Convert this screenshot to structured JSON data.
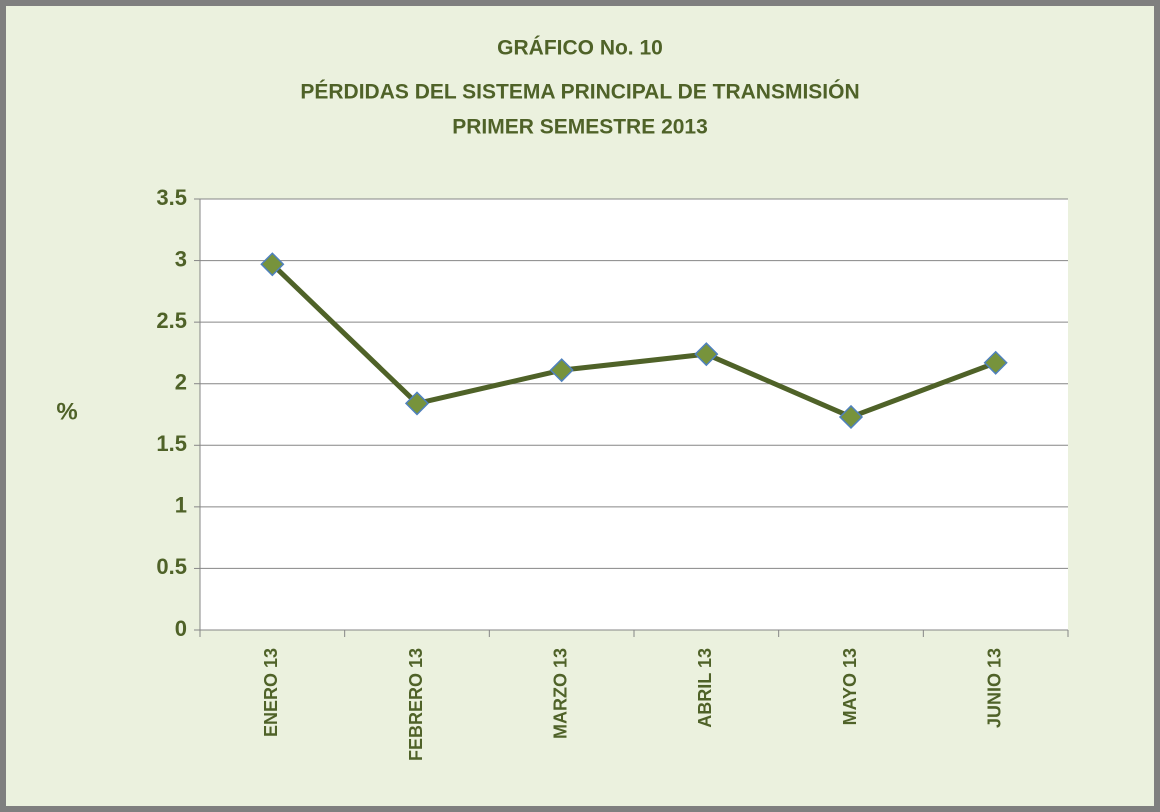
{
  "chart_data": {
    "type": "line",
    "title": [
      "GRÁFICO No. 10",
      "PÉRDIDAS DEL SISTEMA PRINCIPAL DE TRANSMISIÓN",
      "PRIMER  SEMESTRE  2013"
    ],
    "y_label": "%",
    "categories": [
      "ENERO 13",
      "FEBRERO 13",
      "MARZO 13",
      "ABRIL 13",
      "MAYO 13",
      "JUNIO 13"
    ],
    "series": [
      {
        "color": "#4f6228",
        "marker_color": "#77933c",
        "values": [
          2.97,
          1.84,
          2.11,
          2.24,
          1.73,
          2.17
        ]
      }
    ],
    "ylim": [
      0,
      3.5
    ],
    "yticks": [
      0,
      0.5,
      1,
      1.5,
      2,
      2.5,
      3,
      3.5
    ],
    "grid": true
  }
}
